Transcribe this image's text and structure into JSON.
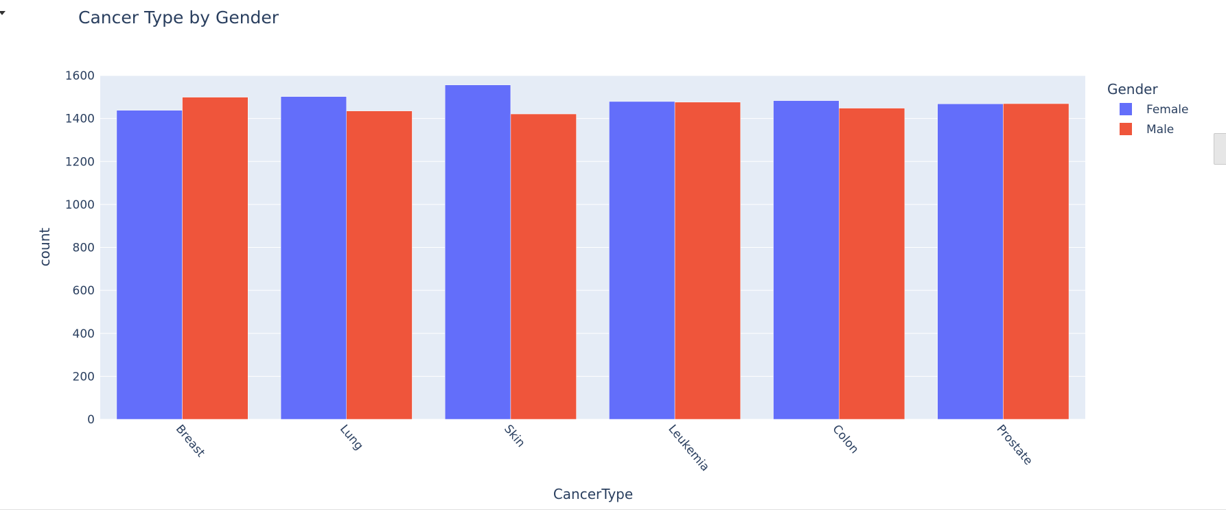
{
  "chart_data": {
    "type": "bar",
    "title": "Cancer Type by Gender",
    "xlabel": "CancerType",
    "ylabel": "count",
    "categories": [
      "Breast",
      "Lung",
      "Skin",
      "Leukemia",
      "Colon",
      "Prostate"
    ],
    "series": [
      {
        "name": "Female",
        "color": "#636efa",
        "values": [
          1438,
          1502,
          1556,
          1479,
          1483,
          1468
        ]
      },
      {
        "name": "Male",
        "color": "#ef553b",
        "values": [
          1499,
          1435,
          1421,
          1476,
          1448,
          1469
        ]
      }
    ],
    "ylim": [
      0,
      1600
    ],
    "yticks": [
      0,
      200,
      400,
      600,
      800,
      1000,
      1200,
      1400,
      1600
    ],
    "legend": {
      "title": "Gender",
      "placement": "top-right"
    },
    "grid": true,
    "plot_background": "#e5ecf6"
  }
}
